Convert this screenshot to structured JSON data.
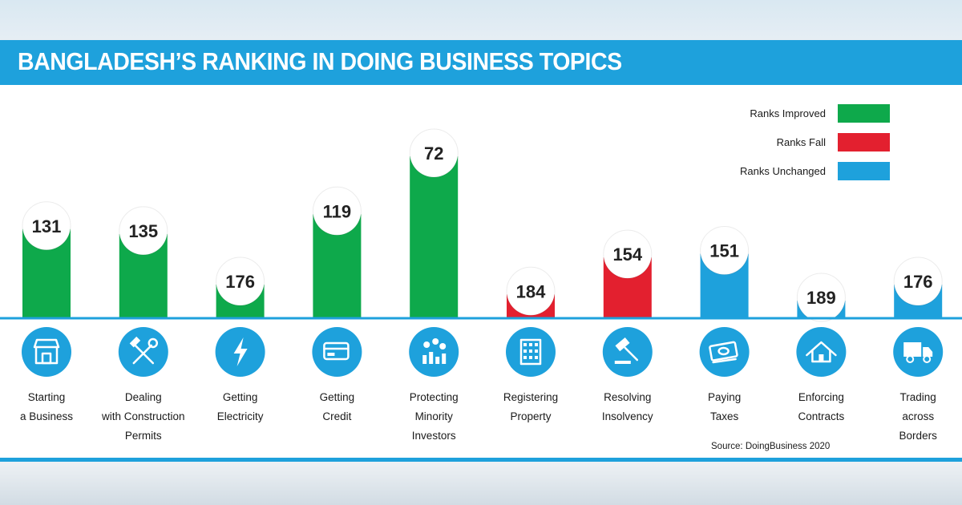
{
  "title": "BANGLADESH’S RANKING IN DOING BUSINESS TOPICS",
  "source": "Source: DoingBusiness 2020",
  "colors": {
    "improved": "#0ea94b",
    "fall": "#e3202f",
    "unchanged": "#1ea1dc",
    "banner": "#1ea1dc"
  },
  "legend": [
    {
      "label": "Ranks Improved",
      "status": "improved"
    },
    {
      "label": "Ranks Fall",
      "status": "fall"
    },
    {
      "label": "Ranks Unchanged",
      "status": "unchanged"
    }
  ],
  "chart_data": {
    "type": "bar",
    "title": "BANGLADESH’S RANKING IN DOING BUSINESS TOPICS",
    "categories": [
      "Starting a Business",
      "Dealing with Construction Permits",
      "Getting Electricity",
      "Getting Credit",
      "Protecting Minority Investors",
      "Registering Property",
      "Resolving Insolvency",
      "Paying Taxes",
      "Enforcing Contracts",
      "Trading across Borders"
    ],
    "category_lines": [
      [
        "Starting",
        "a Business"
      ],
      [
        "Dealing",
        "with Construction",
        "Permits"
      ],
      [
        "Getting",
        "Electricity"
      ],
      [
        "Getting",
        "Credit"
      ],
      [
        "Protecting",
        "Minority",
        "Investors"
      ],
      [
        "Registering",
        "Property"
      ],
      [
        "Resolving",
        "Insolvency"
      ],
      [
        "Paying",
        "Taxes"
      ],
      [
        "Enforcing",
        "Contracts"
      ],
      [
        "Trading",
        "across",
        "Borders"
      ]
    ],
    "values": [
      131,
      135,
      176,
      119,
      72,
      184,
      154,
      151,
      189,
      176
    ],
    "status": [
      "improved",
      "improved",
      "improved",
      "improved",
      "improved",
      "fall",
      "fall",
      "unchanged",
      "unchanged",
      "unchanged"
    ],
    "icons": [
      "store-icon",
      "hammer-wrench-icon",
      "lightning-icon",
      "credit-card-icon",
      "investors-icon",
      "building-icon",
      "gavel-icon",
      "money-icon",
      "house-icon",
      "truck-icon"
    ],
    "scale_note": "inverted: lower rank value drawn as taller bar",
    "ylim": [
      190,
      0
    ],
    "legend_position": "top-right",
    "grid": false
  }
}
